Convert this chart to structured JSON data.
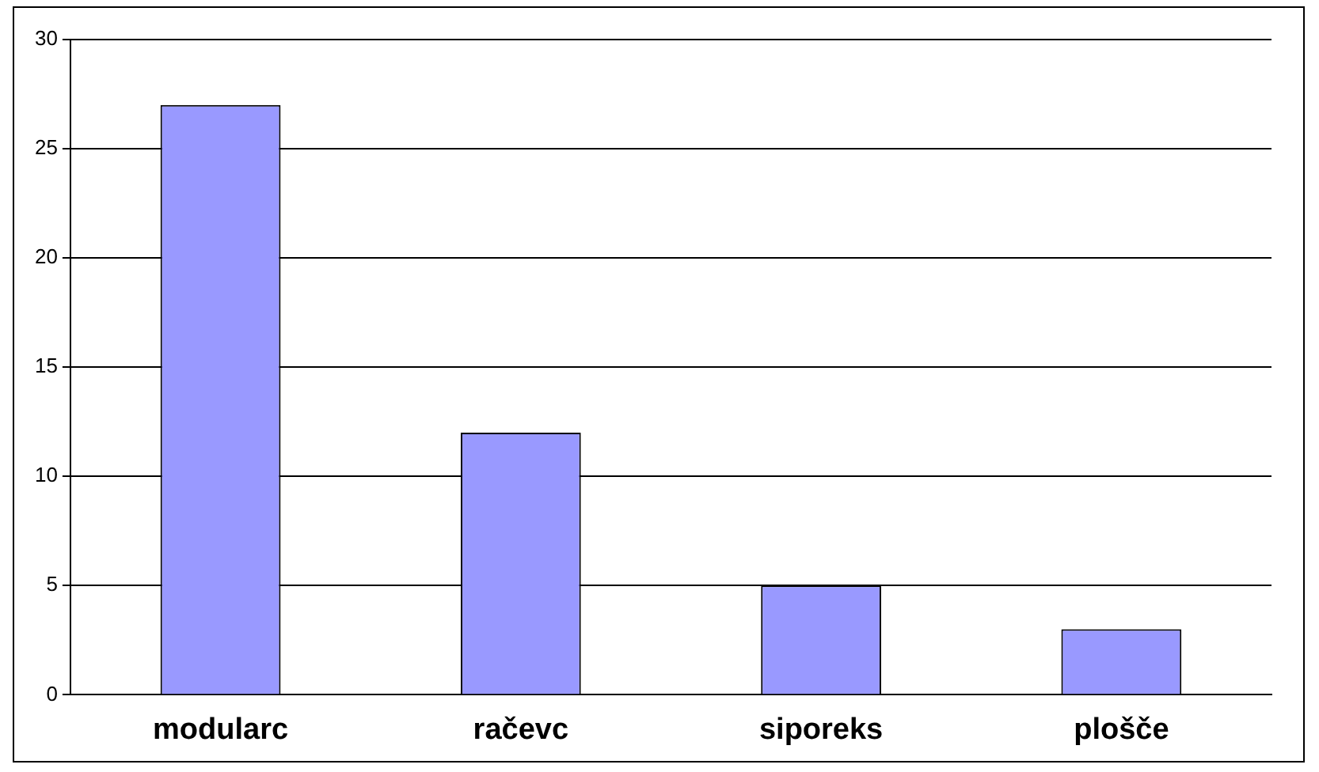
{
  "chart_data": {
    "type": "bar",
    "categories": [
      "modularc",
      "račevc",
      "siporeks",
      "plošče"
    ],
    "values": [
      27,
      12,
      5,
      3
    ],
    "color": "#9999ff",
    "ylim": [
      0,
      30
    ],
    "yticks": [
      0,
      5,
      10,
      15,
      20,
      25,
      30
    ],
    "grid": "y",
    "legend": false
  }
}
